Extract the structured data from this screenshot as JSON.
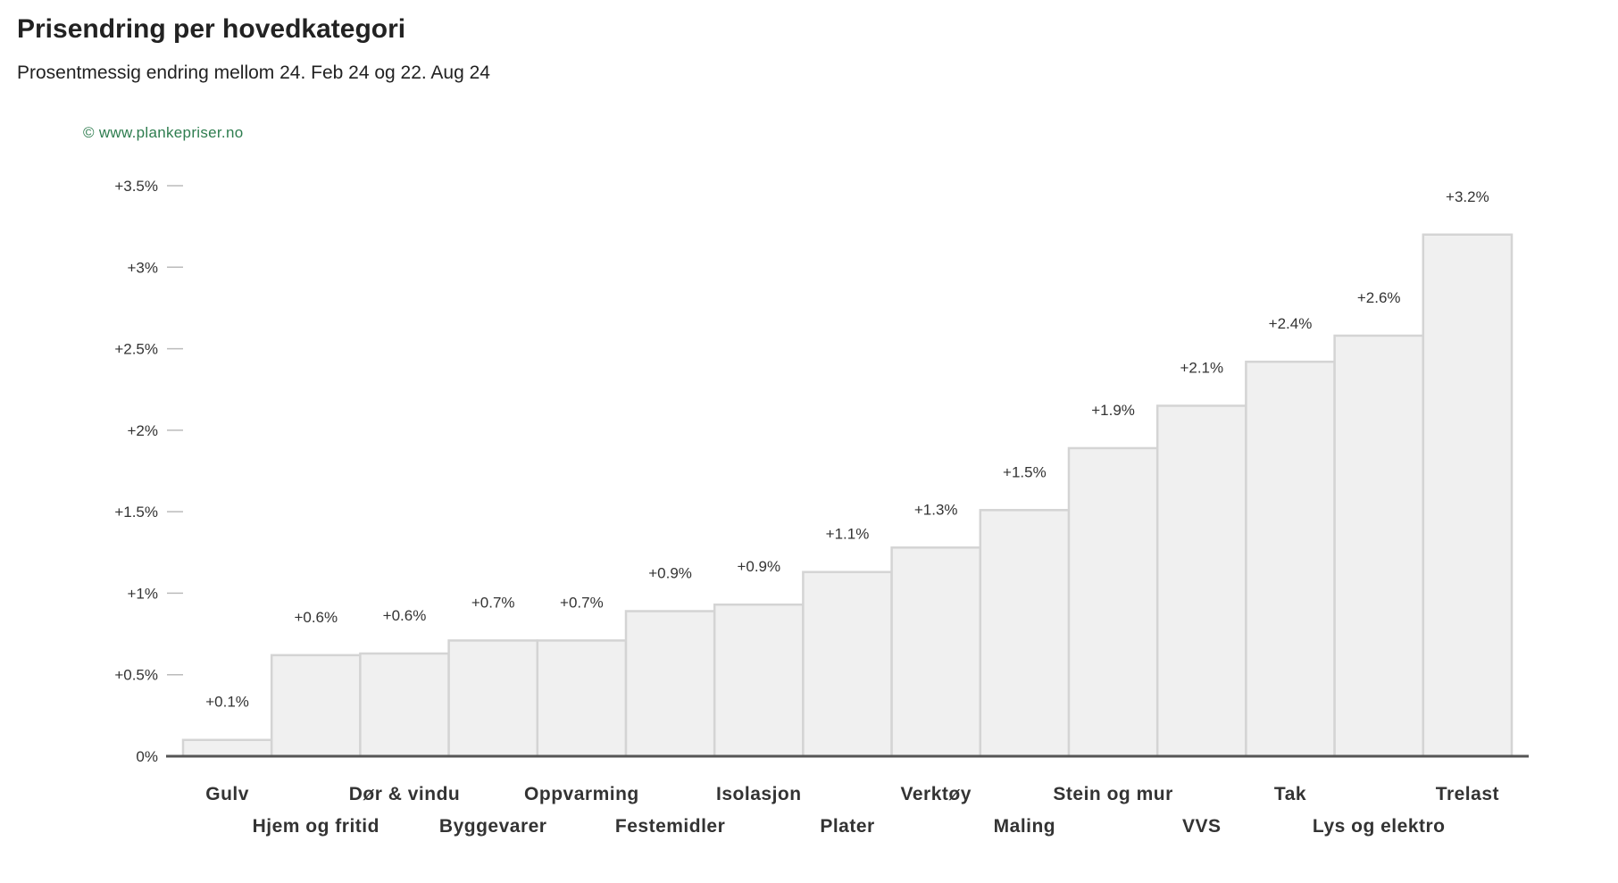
{
  "colors": {
    "bar_fill": "#f0f0f0",
    "bar_stroke": "#d4d4d4",
    "axis": "#555555",
    "credit": "#2e7d4f"
  },
  "chart_data": {
    "type": "bar",
    "title": "Prisendring per hovedkategori",
    "subtitle": "Prosentmessig endring mellom 24. Feb 24 og 22. Aug 24",
    "credit": "© www.plankepriser.no",
    "xlabel": "",
    "ylabel": "",
    "ylim": [
      0,
      3.5
    ],
    "grid": false,
    "legend": "none",
    "yticks": [
      {
        "value": 0,
        "label": "0%"
      },
      {
        "value": 0.5,
        "label": "+0.5%"
      },
      {
        "value": 1,
        "label": "+1%"
      },
      {
        "value": 1.5,
        "label": "+1.5%"
      },
      {
        "value": 2,
        "label": "+2%"
      },
      {
        "value": 2.5,
        "label": "+2.5%"
      },
      {
        "value": 3,
        "label": "+3%"
      },
      {
        "value": 3.5,
        "label": "+3.5%"
      }
    ],
    "categories": [
      "Gulv",
      "Hjem og fritid",
      "Dør & vindu",
      "Byggevarer",
      "Oppvarming",
      "Festemidler",
      "Isolasjon",
      "Plater",
      "Verktøy",
      "Maling",
      "Stein og mur",
      "VVS",
      "Tak",
      "Lys og elektro",
      "Trelast"
    ],
    "values": [
      0.1,
      0.62,
      0.63,
      0.71,
      0.71,
      0.89,
      0.93,
      1.13,
      1.28,
      1.51,
      1.89,
      2.15,
      2.42,
      2.58,
      3.2
    ],
    "data_labels": [
      "+0.1%",
      "+0.6%",
      "+0.6%",
      "+0.7%",
      "+0.7%",
      "+0.9%",
      "+0.9%",
      "+1.1%",
      "+1.3%",
      "+1.5%",
      "+1.9%",
      "+2.1%",
      "+2.4%",
      "+2.6%",
      "+3.2%"
    ]
  }
}
